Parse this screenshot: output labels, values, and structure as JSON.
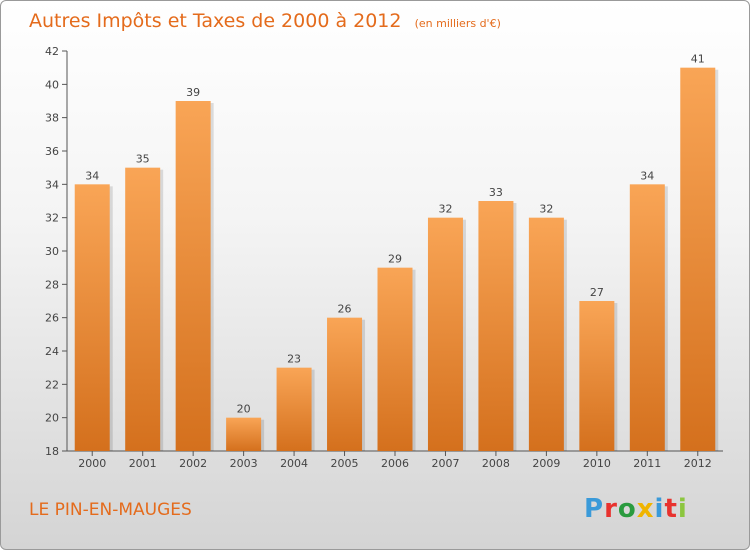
{
  "chart_data": {
    "type": "bar",
    "title": "Autres Impôts et Taxes de 2000 à 2012",
    "subtitle": "(en milliers d'€)",
    "categories": [
      "2000",
      "2001",
      "2002",
      "2003",
      "2004",
      "2005",
      "2006",
      "2007",
      "2008",
      "2009",
      "2010",
      "2011",
      "2012"
    ],
    "values": [
      34,
      35,
      39,
      20,
      23,
      26,
      29,
      32,
      33,
      32,
      27,
      34,
      41
    ],
    "ylim": [
      18,
      42
    ],
    "yticks": [
      18,
      20,
      22,
      24,
      26,
      28,
      30,
      32,
      34,
      36,
      38,
      40,
      42
    ],
    "grid": false,
    "colors": {
      "bar_top": "#f9a556",
      "bar_bottom": "#d4701d",
      "accent": "#e46b1c"
    }
  },
  "footer": {
    "commune": "LE PIN-EN-MAUGES",
    "logo_letters": [
      "P",
      "r",
      "o",
      "x",
      "i",
      "t",
      "i"
    ],
    "logo_colors": [
      "#3a9ad9",
      "#e8322e",
      "#2a9b3f",
      "#f0b400",
      "#3a9ad9",
      "#e8322e",
      "#8cc63f"
    ]
  }
}
